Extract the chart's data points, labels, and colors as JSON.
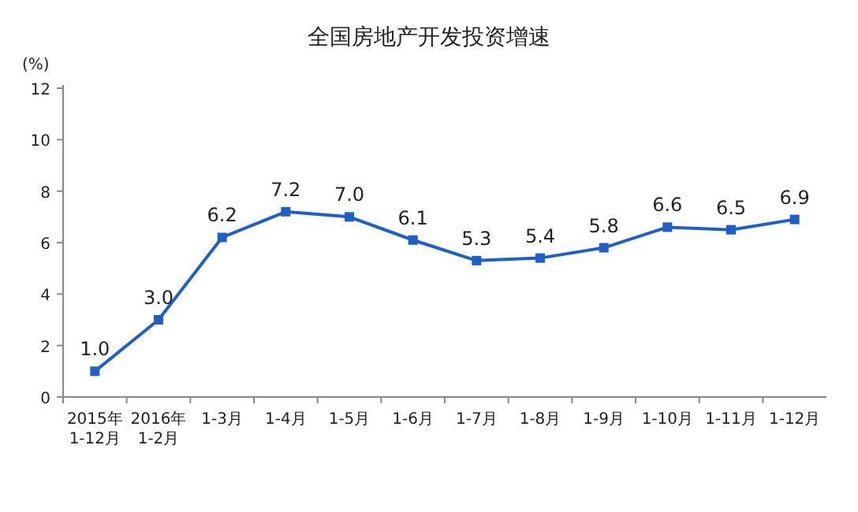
{
  "chart_data": {
    "type": "line",
    "title": "全国房地产开发投资增速",
    "ylabel": "(%)",
    "categories": [
      "2015年\n1-12月",
      "2016年\n1-2月",
      "1-3月",
      "1-4月",
      "1-5月",
      "1-6月",
      "1-7月",
      "1-8月",
      "1-9月",
      "1-10月",
      "1-11月",
      "1-12月"
    ],
    "series": [
      {
        "color": "#1f5fc8",
        "values": [
          1.0,
          3.0,
          6.2,
          7.2,
          7.0,
          6.1,
          5.3,
          5.4,
          5.8,
          6.6,
          6.5,
          6.9
        ],
        "value_labels": [
          "1.0",
          "3.0",
          "6.2",
          "7.2",
          "7.0",
          "6.1",
          "5.3",
          "5.4",
          "5.8",
          "6.6",
          "6.5",
          "6.9"
        ]
      }
    ],
    "ylim": [
      0,
      12
    ],
    "yticks": [
      0,
      2,
      4,
      6,
      8,
      10,
      12
    ],
    "marker": "square",
    "line_style": "solid"
  }
}
